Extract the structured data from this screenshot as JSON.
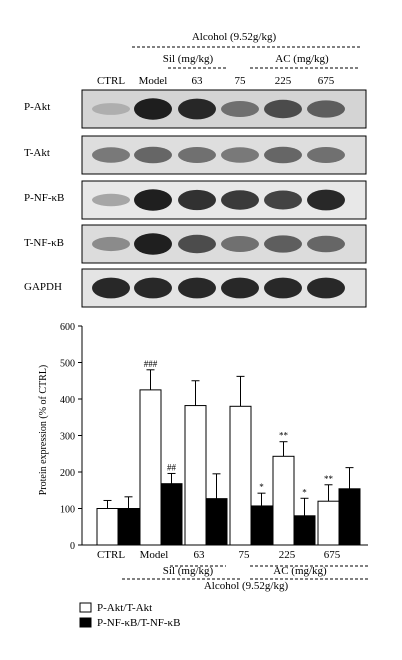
{
  "western_blot": {
    "alcohol_label": "Alcohol (9.52g/kg)",
    "sil_label": "Sil (mg/kg)",
    "ac_label": "AC (mg/kg)",
    "lanes": [
      "CTRL",
      "Model",
      "63",
      "75",
      "225",
      "675"
    ],
    "rows": [
      {
        "label": "P-Akt",
        "intensity": [
          0.15,
          0.95,
          0.9,
          0.5,
          0.7,
          0.6
        ]
      },
      {
        "label": "T-Akt",
        "intensity": [
          0.45,
          0.55,
          0.5,
          0.45,
          0.55,
          0.5
        ]
      },
      {
        "label": "P-NF-κB",
        "intensity": [
          0.2,
          0.95,
          0.85,
          0.8,
          0.75,
          0.9
        ]
      },
      {
        "label": "T-NF-κB",
        "intensity": [
          0.35,
          0.95,
          0.7,
          0.5,
          0.6,
          0.55
        ]
      },
      {
        "label": "GAPDH",
        "intensity": [
          0.9,
          0.9,
          0.9,
          0.9,
          0.9,
          0.9
        ]
      }
    ]
  },
  "chart_data": {
    "type": "bar",
    "ylabel": "Protein expression (% of CTRL)",
    "ylim": [
      0,
      600
    ],
    "yticks": [
      0,
      100,
      200,
      300,
      400,
      500,
      600
    ],
    "categories": [
      "CTRL",
      "Model",
      "63",
      "75",
      "225",
      "675"
    ],
    "series": [
      {
        "name": "P-Akt/T-Akt",
        "color": "#ffffff",
        "values": [
          100,
          425,
          382,
          380,
          243,
          120
        ],
        "errors": [
          22,
          55,
          68,
          82,
          40,
          45
        ],
        "marks": [
          "",
          "###",
          "",
          "",
          "**",
          "**"
        ]
      },
      {
        "name": "P-NF-κB/T-NF-κB",
        "color": "#000000",
        "values": [
          100,
          168,
          127,
          107,
          80,
          154
        ],
        "errors": [
          32,
          28,
          68,
          35,
          48,
          58
        ],
        "marks": [
          "",
          "##",
          "",
          "*",
          "*",
          ""
        ]
      }
    ],
    "group_labels": {
      "sil": "Sil (mg/kg)",
      "ac": "AC (mg/kg)",
      "alcohol": "Alcohol (9.52g/kg)"
    }
  }
}
